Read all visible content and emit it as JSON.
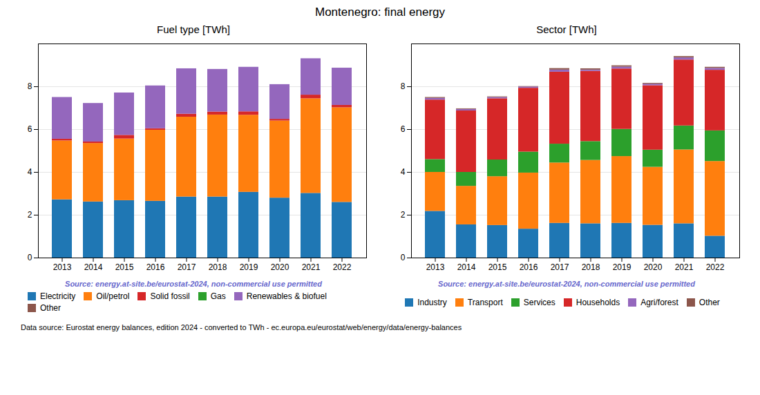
{
  "title": "Montenegro: final energy",
  "annotations": [
    {
      "text": "Data source: Eurostat energy balances, edition 2024 - converted to TWh - ec.europa.eu/eurostat/web/energy/data/energy-balances"
    }
  ],
  "chart_data": [
    {
      "type": "bar",
      "stacked": true,
      "title": "Fuel type [TWh]",
      "categories": [
        "2013",
        "2014",
        "2015",
        "2016",
        "2017",
        "2018",
        "2019",
        "2020",
        "2021",
        "2022"
      ],
      "series": [
        {
          "name": "Electricity",
          "color": "#1f77b4",
          "values": [
            2.72,
            2.62,
            2.68,
            2.65,
            2.85,
            2.85,
            3.07,
            2.8,
            3.02,
            2.6
          ]
        },
        {
          "name": "Oil/petrol",
          "color": "#ff7f0e",
          "values": [
            2.75,
            2.73,
            2.88,
            3.32,
            3.73,
            3.83,
            3.6,
            3.6,
            4.42,
            4.42
          ]
        },
        {
          "name": "Solid fossil",
          "color": "#d62728",
          "values": [
            0.08,
            0.07,
            0.17,
            0.07,
            0.14,
            0.14,
            0.16,
            0.08,
            0.17,
            0.11
          ]
        },
        {
          "name": "Gas",
          "color": "#2ca02c",
          "values": [
            0.0,
            0.0,
            0.0,
            0.0,
            0.0,
            0.0,
            0.0,
            0.0,
            0.0,
            0.0
          ]
        },
        {
          "name": "Renewables & biofuel",
          "color": "#9467bd",
          "values": [
            1.95,
            1.8,
            1.98,
            2.0,
            2.12,
            1.99,
            2.08,
            1.62,
            1.7,
            1.74
          ]
        },
        {
          "name": "Other",
          "color": "#8c564b",
          "values": [
            0.0,
            0.0,
            0.0,
            0.0,
            0.0,
            0.0,
            0.0,
            0.0,
            0.0,
            0.0
          ]
        }
      ],
      "ylim": [
        0,
        10
      ],
      "yticks": [
        0,
        2,
        4,
        6,
        8
      ],
      "grid": true,
      "legend": "bottom",
      "annotations": [
        {
          "text": "Source: energy.at-site.be/eurostat-2024, non-commercial use permitted",
          "color": "#6666cc"
        }
      ]
    },
    {
      "type": "bar",
      "stacked": true,
      "title": "Sector [TWh]",
      "categories": [
        "2013",
        "2014",
        "2015",
        "2016",
        "2017",
        "2018",
        "2019",
        "2020",
        "2021",
        "2022"
      ],
      "series": [
        {
          "name": "Industry",
          "color": "#1f77b4",
          "values": [
            2.18,
            1.55,
            1.52,
            1.35,
            1.62,
            1.6,
            1.62,
            1.53,
            1.6,
            1.02
          ]
        },
        {
          "name": "Transport",
          "color": "#ff7f0e",
          "values": [
            1.82,
            1.8,
            2.28,
            2.62,
            2.82,
            2.96,
            3.12,
            2.71,
            3.45,
            3.49
          ]
        },
        {
          "name": "Services",
          "color": "#2ca02c",
          "values": [
            0.6,
            0.65,
            0.78,
            0.98,
            0.88,
            0.88,
            1.27,
            0.8,
            1.12,
            1.43
          ]
        },
        {
          "name": "Households",
          "color": "#d62728",
          "values": [
            2.78,
            2.87,
            2.86,
            2.98,
            3.36,
            3.28,
            2.82,
            3.01,
            3.08,
            2.83
          ]
        },
        {
          "name": "Agri/forest",
          "color": "#9467bd",
          "values": [
            0.08,
            0.07,
            0.06,
            0.06,
            0.1,
            0.06,
            0.09,
            0.07,
            0.1,
            0.09
          ]
        },
        {
          "name": "Other",
          "color": "#8c564b",
          "values": [
            0.04,
            0.03,
            0.03,
            0.02,
            0.07,
            0.06,
            0.06,
            0.04,
            0.06,
            0.05
          ]
        }
      ],
      "ylim": [
        0,
        10
      ],
      "yticks": [
        0,
        2,
        4,
        6,
        8
      ],
      "grid": true,
      "legend": "bottom",
      "annotations": [
        {
          "text": "Source: energy.at-site.be/eurostat-2024, non-commercial use permitted",
          "color": "#6666cc"
        }
      ]
    }
  ]
}
